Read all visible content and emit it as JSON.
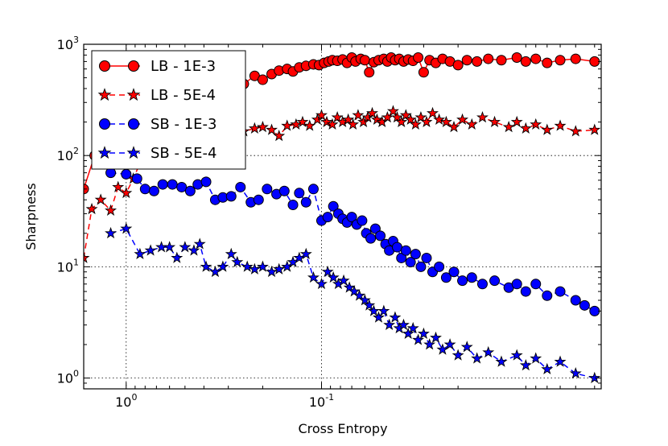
{
  "chart_data": {
    "type": "line",
    "title": "",
    "xlabel": "Cross Entropy",
    "ylabel": "Sharpness",
    "x_scale": "log",
    "y_scale": "log",
    "x_inverted": true,
    "xlim": [
      1.65,
      0.0037
    ],
    "ylim": [
      0.8,
      1000
    ],
    "grid": true,
    "legend_position": "top-left",
    "x_ticks": [
      {
        "value": 1.0,
        "base": "10",
        "exp": "0"
      },
      {
        "value": 0.1,
        "base": "10",
        "exp": "-1"
      }
    ],
    "y_ticks": [
      {
        "value": 1,
        "base": "10",
        "exp": "0"
      },
      {
        "value": 10,
        "base": "10",
        "exp": "1"
      },
      {
        "value": 100,
        "base": "10",
        "exp": "2"
      },
      {
        "value": 1000,
        "base": "10",
        "exp": "3"
      }
    ],
    "series": [
      {
        "name": "LB - 1E-3",
        "color": "#ff0000",
        "linestyle": "solid",
        "marker": "circle",
        "points": [
          [
            1.65,
            50
          ],
          [
            1.45,
            100
          ],
          [
            1.25,
            180
          ],
          [
            1.05,
            150
          ],
          [
            0.9,
            200
          ],
          [
            0.78,
            230
          ],
          [
            0.68,
            260
          ],
          [
            0.6,
            300
          ],
          [
            0.52,
            290
          ],
          [
            0.48,
            330
          ],
          [
            0.45,
            300
          ],
          [
            0.42,
            310
          ],
          [
            0.38,
            380
          ],
          [
            0.35,
            400
          ],
          [
            0.31,
            420
          ],
          [
            0.28,
            460
          ],
          [
            0.25,
            440
          ],
          [
            0.22,
            520
          ],
          [
            0.2,
            480
          ],
          [
            0.18,
            540
          ],
          [
            0.165,
            580
          ],
          [
            0.15,
            600
          ],
          [
            0.14,
            570
          ],
          [
            0.13,
            620
          ],
          [
            0.12,
            640
          ],
          [
            0.11,
            660
          ],
          [
            0.103,
            650
          ],
          [
            0.097,
            680
          ],
          [
            0.092,
            700
          ],
          [
            0.088,
            720
          ],
          [
            0.083,
            710
          ],
          [
            0.078,
            730
          ],
          [
            0.074,
            680
          ],
          [
            0.07,
            760
          ],
          [
            0.067,
            700
          ],
          [
            0.063,
            740
          ],
          [
            0.06,
            720
          ],
          [
            0.057,
            560
          ],
          [
            0.054,
            690
          ],
          [
            0.051,
            720
          ],
          [
            0.048,
            740
          ],
          [
            0.046,
            700
          ],
          [
            0.044,
            760
          ],
          [
            0.042,
            720
          ],
          [
            0.04,
            740
          ],
          [
            0.038,
            700
          ],
          [
            0.036,
            730
          ],
          [
            0.034,
            710
          ],
          [
            0.032,
            760
          ],
          [
            0.03,
            560
          ],
          [
            0.028,
            720
          ],
          [
            0.026,
            680
          ],
          [
            0.024,
            740
          ],
          [
            0.022,
            700
          ],
          [
            0.02,
            650
          ],
          [
            0.018,
            720
          ],
          [
            0.016,
            700
          ],
          [
            0.014,
            740
          ],
          [
            0.012,
            720
          ],
          [
            0.01,
            760
          ],
          [
            0.009,
            700
          ],
          [
            0.008,
            740
          ],
          [
            0.007,
            680
          ],
          [
            0.006,
            720
          ],
          [
            0.005,
            740
          ],
          [
            0.004,
            700
          ]
        ]
      },
      {
        "name": "LB - 5E-4",
        "color": "#ff0000",
        "linestyle": "dashed",
        "marker": "star",
        "points": [
          [
            1.65,
            12
          ],
          [
            1.5,
            33
          ],
          [
            1.35,
            40
          ],
          [
            1.2,
            32
          ],
          [
            1.1,
            52
          ],
          [
            1.0,
            46
          ],
          [
            0.92,
            62
          ],
          [
            0.85,
            85
          ],
          [
            0.78,
            95
          ],
          [
            0.7,
            110
          ],
          [
            0.62,
            120
          ],
          [
            0.55,
            140
          ],
          [
            0.5,
            150
          ],
          [
            0.45,
            160
          ],
          [
            0.42,
            150
          ],
          [
            0.39,
            130
          ],
          [
            0.36,
            145
          ],
          [
            0.33,
            140
          ],
          [
            0.3,
            160
          ],
          [
            0.27,
            170
          ],
          [
            0.25,
            165
          ],
          [
            0.22,
            175
          ],
          [
            0.2,
            180
          ],
          [
            0.18,
            170
          ],
          [
            0.165,
            150
          ],
          [
            0.15,
            185
          ],
          [
            0.135,
            190
          ],
          [
            0.125,
            200
          ],
          [
            0.115,
            185
          ],
          [
            0.105,
            210
          ],
          [
            0.1,
            230
          ],
          [
            0.094,
            200
          ],
          [
            0.088,
            190
          ],
          [
            0.083,
            220
          ],
          [
            0.078,
            200
          ],
          [
            0.073,
            210
          ],
          [
            0.069,
            190
          ],
          [
            0.065,
            230
          ],
          [
            0.061,
            200
          ],
          [
            0.058,
            220
          ],
          [
            0.055,
            240
          ],
          [
            0.052,
            210
          ],
          [
            0.049,
            200
          ],
          [
            0.046,
            220
          ],
          [
            0.043,
            250
          ],
          [
            0.041,
            220
          ],
          [
            0.039,
            200
          ],
          [
            0.037,
            230
          ],
          [
            0.035,
            210
          ],
          [
            0.033,
            190
          ],
          [
            0.031,
            220
          ],
          [
            0.029,
            200
          ],
          [
            0.027,
            240
          ],
          [
            0.025,
            210
          ],
          [
            0.023,
            200
          ],
          [
            0.021,
            180
          ],
          [
            0.019,
            210
          ],
          [
            0.017,
            190
          ],
          [
            0.015,
            220
          ],
          [
            0.013,
            200
          ],
          [
            0.011,
            180
          ],
          [
            0.01,
            200
          ],
          [
            0.009,
            175
          ],
          [
            0.008,
            190
          ],
          [
            0.007,
            170
          ],
          [
            0.006,
            185
          ],
          [
            0.005,
            165
          ],
          [
            0.004,
            170
          ]
        ]
      },
      {
        "name": "SB - 1E-3",
        "color": "#0000ff",
        "linestyle": "dashed",
        "marker": "circle",
        "points": [
          [
            1.2,
            70
          ],
          [
            1.0,
            68
          ],
          [
            0.88,
            62
          ],
          [
            0.8,
            50
          ],
          [
            0.72,
            48
          ],
          [
            0.65,
            55
          ],
          [
            0.58,
            55
          ],
          [
            0.52,
            52
          ],
          [
            0.47,
            48
          ],
          [
            0.43,
            55
          ],
          [
            0.39,
            58
          ],
          [
            0.35,
            40
          ],
          [
            0.32,
            42
          ],
          [
            0.29,
            43
          ],
          [
            0.26,
            52
          ],
          [
            0.23,
            38
          ],
          [
            0.21,
            40
          ],
          [
            0.19,
            50
          ],
          [
            0.17,
            45
          ],
          [
            0.155,
            48
          ],
          [
            0.14,
            36
          ],
          [
            0.13,
            46
          ],
          [
            0.12,
            38
          ],
          [
            0.11,
            50
          ],
          [
            0.1,
            26
          ],
          [
            0.093,
            28
          ],
          [
            0.087,
            35
          ],
          [
            0.082,
            30
          ],
          [
            0.078,
            27
          ],
          [
            0.074,
            25
          ],
          [
            0.07,
            28
          ],
          [
            0.066,
            24
          ],
          [
            0.062,
            26
          ],
          [
            0.059,
            20
          ],
          [
            0.056,
            18
          ],
          [
            0.053,
            22
          ],
          [
            0.05,
            19
          ],
          [
            0.047,
            16
          ],
          [
            0.045,
            14
          ],
          [
            0.043,
            17
          ],
          [
            0.041,
            15
          ],
          [
            0.039,
            12
          ],
          [
            0.037,
            14
          ],
          [
            0.035,
            11
          ],
          [
            0.033,
            13
          ],
          [
            0.031,
            10
          ],
          [
            0.029,
            12
          ],
          [
            0.027,
            9
          ],
          [
            0.025,
            10
          ],
          [
            0.023,
            8
          ],
          [
            0.021,
            9
          ],
          [
            0.019,
            7.5
          ],
          [
            0.017,
            8
          ],
          [
            0.015,
            7
          ],
          [
            0.013,
            7.5
          ],
          [
            0.011,
            6.5
          ],
          [
            0.01,
            7
          ],
          [
            0.009,
            6
          ],
          [
            0.008,
            7
          ],
          [
            0.007,
            5.5
          ],
          [
            0.006,
            6
          ],
          [
            0.005,
            5
          ],
          [
            0.0045,
            4.5
          ],
          [
            0.004,
            4
          ]
        ]
      },
      {
        "name": "SB - 5E-4",
        "color": "#0000ff",
        "linestyle": "dashed",
        "marker": "star",
        "points": [
          [
            1.2,
            20
          ],
          [
            1.0,
            22
          ],
          [
            0.85,
            13
          ],
          [
            0.75,
            14
          ],
          [
            0.66,
            15
          ],
          [
            0.6,
            15
          ],
          [
            0.55,
            12
          ],
          [
            0.5,
            15
          ],
          [
            0.45,
            14
          ],
          [
            0.42,
            16
          ],
          [
            0.39,
            10
          ],
          [
            0.35,
            9
          ],
          [
            0.32,
            10
          ],
          [
            0.29,
            13
          ],
          [
            0.27,
            11
          ],
          [
            0.24,
            10
          ],
          [
            0.22,
            9.5
          ],
          [
            0.2,
            10
          ],
          [
            0.18,
            9
          ],
          [
            0.165,
            9.5
          ],
          [
            0.15,
            10
          ],
          [
            0.14,
            11
          ],
          [
            0.13,
            12
          ],
          [
            0.12,
            13
          ],
          [
            0.11,
            8
          ],
          [
            0.1,
            7
          ],
          [
            0.093,
            9
          ],
          [
            0.087,
            8
          ],
          [
            0.082,
            7
          ],
          [
            0.077,
            7.5
          ],
          [
            0.072,
            6.5
          ],
          [
            0.068,
            6
          ],
          [
            0.064,
            5.5
          ],
          [
            0.06,
            5
          ],
          [
            0.057,
            4.5
          ],
          [
            0.054,
            4
          ],
          [
            0.051,
            3.5
          ],
          [
            0.048,
            4
          ],
          [
            0.045,
            3
          ],
          [
            0.042,
            3.5
          ],
          [
            0.04,
            2.8
          ],
          [
            0.038,
            3
          ],
          [
            0.036,
            2.5
          ],
          [
            0.034,
            2.8
          ],
          [
            0.032,
            2.2
          ],
          [
            0.03,
            2.5
          ],
          [
            0.028,
            2
          ],
          [
            0.026,
            2.3
          ],
          [
            0.024,
            1.8
          ],
          [
            0.022,
            2
          ],
          [
            0.02,
            1.6
          ],
          [
            0.018,
            1.9
          ],
          [
            0.016,
            1.5
          ],
          [
            0.014,
            1.7
          ],
          [
            0.012,
            1.4
          ],
          [
            0.01,
            1.6
          ],
          [
            0.009,
            1.3
          ],
          [
            0.008,
            1.5
          ],
          [
            0.007,
            1.2
          ],
          [
            0.006,
            1.4
          ],
          [
            0.005,
            1.1
          ],
          [
            0.004,
            1.0
          ]
        ]
      }
    ]
  }
}
